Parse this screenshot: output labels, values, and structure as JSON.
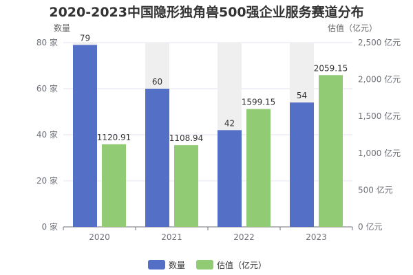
{
  "chart_data": {
    "type": "bar",
    "title": "2020-2023中国隐形独角兽500强企业服务赛道分布",
    "categories": [
      "2020",
      "2021",
      "2022",
      "2023"
    ],
    "y_left": {
      "name": "数量",
      "min": 0,
      "max": 80,
      "ticks": [
        0,
        20,
        40,
        60,
        80
      ],
      "tick_labels": [
        "0 家",
        "20 家",
        "40 家",
        "60 家",
        "80 家"
      ]
    },
    "y_right": {
      "name": "估值（亿元）",
      "min": 0,
      "max": 2500,
      "ticks": [
        0,
        500,
        1000,
        1500,
        2000,
        2500
      ],
      "tick_labels": [
        "0 亿元",
        "500 亿元",
        "1,000 亿元",
        "1,500 亿元",
        "2,000 亿元",
        "2,500 亿元"
      ]
    },
    "series": [
      {
        "name": "数量",
        "axis": "left",
        "color": "#5470c6",
        "values": [
          79,
          60,
          42,
          54
        ],
        "labels": [
          "79",
          "60",
          "42",
          "54"
        ],
        "show_background": true,
        "background_color": "#efefef"
      },
      {
        "name": "估值（亿元）",
        "axis": "right",
        "color": "#91cc75",
        "values": [
          1120.91,
          1108.94,
          1599.15,
          2059.15
        ],
        "labels": [
          "1120.91",
          "1108.94",
          "1599.15",
          "2059.15"
        ]
      }
    ],
    "grid": true,
    "legend_position": "bottom"
  }
}
